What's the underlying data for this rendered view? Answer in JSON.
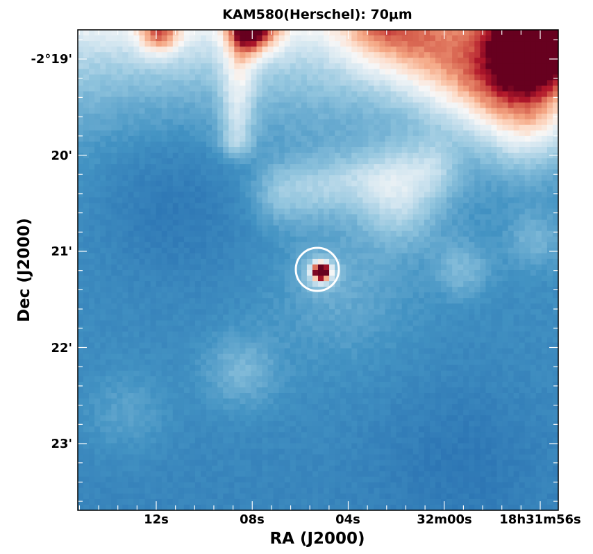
{
  "figure": {
    "title": "KAM580(Herschel): 70μm",
    "x_axis_label": "RA (J2000)",
    "y_axis_label": "Dec (J2000)",
    "x_tick_labels": [
      "12s",
      "08s",
      "04s",
      "32m00s",
      "18h31m56s"
    ],
    "y_tick_labels": [
      "-2°19'",
      "20'",
      "21'",
      "22'",
      "23'"
    ],
    "colormap": "RdBu_r",
    "colormap_colors": [
      "#08306b",
      "#2166ac",
      "#4393c3",
      "#92c5de",
      "#d1e5f0",
      "#f7f7f7",
      "#fddbc7",
      "#f4a582",
      "#d6604d",
      "#b2182b",
      "#67001f"
    ],
    "source_marker": {
      "shape": "circle",
      "color": "#ffffff"
    },
    "tick_color": "#ffffff"
  }
}
